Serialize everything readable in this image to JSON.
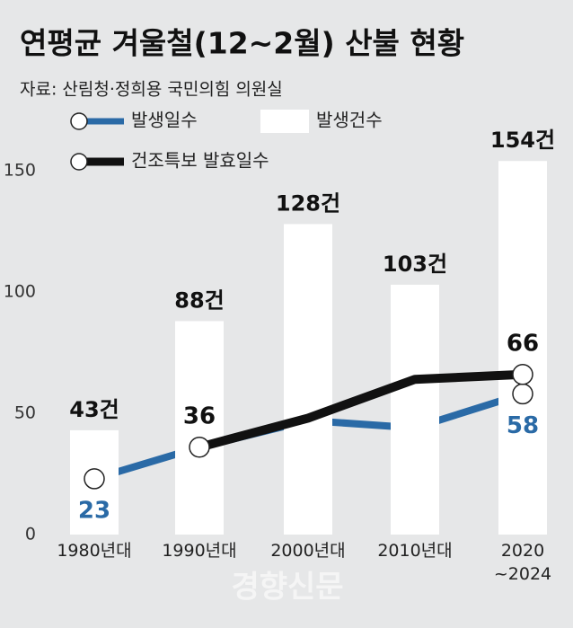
{
  "chart_data": {
    "type": "bar",
    "title": "연평균 겨울철(12~2월) 산불 현황",
    "subtitle": "자료: 산림청·정희용 국민의힘 의원실",
    "watermark": "경향신문",
    "categories": [
      "1980년대",
      "1990년대",
      "2000년대",
      "2010년대",
      "2020\n~2024"
    ],
    "series": [
      {
        "name": "발생일수",
        "type": "line",
        "color": "#2a6aa6",
        "values": [
          23,
          36,
          47,
          44,
          58
        ],
        "value_labels": [
          "23",
          null,
          null,
          null,
          "58"
        ]
      },
      {
        "name": "발생건수",
        "type": "bar",
        "color": "#ffffff",
        "values": [
          43,
          88,
          128,
          103,
          154
        ],
        "value_labels": [
          "43건",
          "88건",
          "128건",
          "103건",
          "154건"
        ]
      },
      {
        "name": "건조특보 발효일수",
        "type": "line",
        "color": "#111111",
        "values": [
          null,
          36,
          48,
          64,
          66
        ],
        "value_labels": [
          null,
          "36",
          null,
          null,
          "66"
        ]
      }
    ],
    "ylim": [
      0,
      160
    ],
    "yticks": [
      0,
      50,
      100,
      150
    ],
    "grid": false
  }
}
